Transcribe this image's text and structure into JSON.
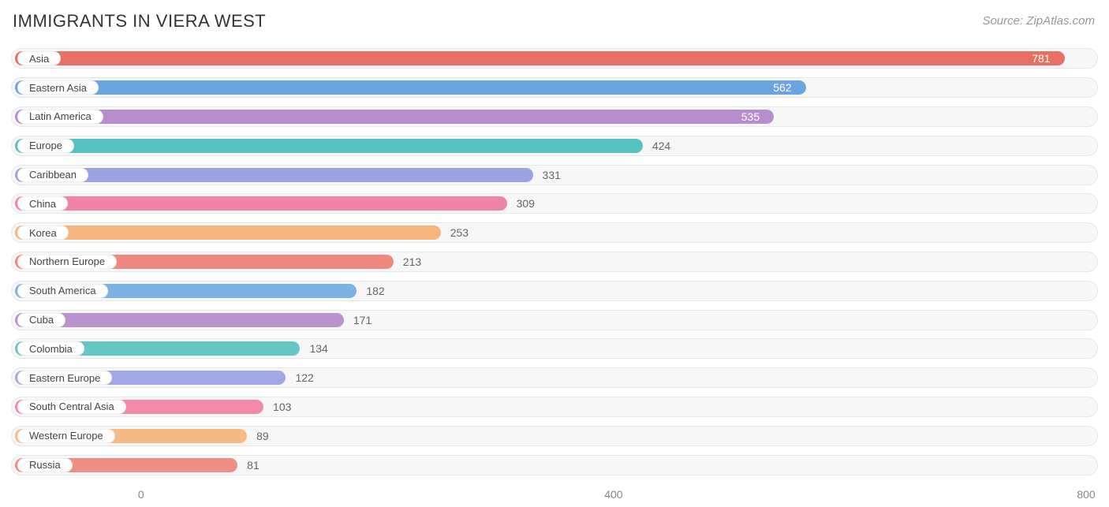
{
  "title": "IMMIGRANTS IN VIERA WEST",
  "source": "Source: ZipAtlas.com",
  "chart": {
    "type": "bar-horizontal",
    "background_color": "#ffffff",
    "track_bg": "#f7f7f7",
    "track_border": "#e6e6e6",
    "title_fontsize": 22,
    "label_fontsize": 13,
    "value_fontsize": 14,
    "xmin": -110,
    "xmax": 810,
    "x_ticks": [
      0,
      400,
      800
    ],
    "value_inside_threshold": 500,
    "bars": [
      {
        "label": "Asia",
        "value": 781,
        "color": "#e86f64"
      },
      {
        "label": "Eastern Asia",
        "value": 562,
        "color": "#6ba5e0"
      },
      {
        "label": "Latin America",
        "value": 535,
        "color": "#b78dce"
      },
      {
        "label": "Europe",
        "value": 424,
        "color": "#56c3c0"
      },
      {
        "label": "Caribbean",
        "value": 331,
        "color": "#9aa4e3"
      },
      {
        "label": "China",
        "value": 309,
        "color": "#f183a8"
      },
      {
        "label": "Korea",
        "value": 253,
        "color": "#f6b57a"
      },
      {
        "label": "Northern Europe",
        "value": 213,
        "color": "#ef887f"
      },
      {
        "label": "South America",
        "value": 182,
        "color": "#7db2e4"
      },
      {
        "label": "Cuba",
        "value": 171,
        "color": "#ba93ce"
      },
      {
        "label": "Colombia",
        "value": 134,
        "color": "#66c6c3"
      },
      {
        "label": "Eastern Europe",
        "value": 122,
        "color": "#a0a9e4"
      },
      {
        "label": "South Central Asia",
        "value": 103,
        "color": "#f28baa"
      },
      {
        "label": "Western Europe",
        "value": 89,
        "color": "#f6ba85"
      },
      {
        "label": "Russia",
        "value": 81,
        "color": "#ef8e85"
      }
    ]
  }
}
